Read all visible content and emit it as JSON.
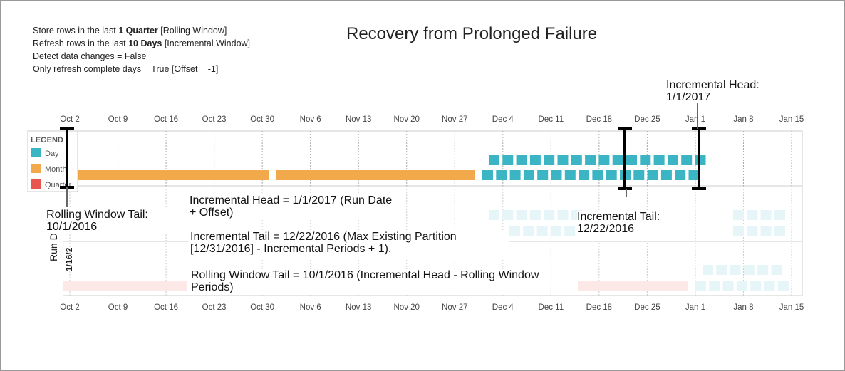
{
  "settings": [
    {
      "before": "Store rows in the last ",
      "bold": "1 Quarter",
      "after": " [Rolling Window]"
    },
    {
      "before": "Refresh rows in the last ",
      "bold": "10 Days",
      "after": " [Incremental Window]"
    },
    {
      "text": "Detect data changes = False"
    },
    {
      "text": "Only refresh complete days = True [Offset = -1]"
    }
  ],
  "title": "Recovery from Prolonged Failure",
  "axis_labels": [
    "Oct 2",
    "Oct 9",
    "Oct 16",
    "Oct 23",
    "Oct 30",
    "Nov 6",
    "Nov 13",
    "Nov 20",
    "Nov 27",
    "Dec 4",
    "Dec 11",
    "Dec 18",
    "Dec 25",
    "Jan 1",
    "Jan 8",
    "Jan 15"
  ],
  "legend": {
    "title": "LEGEND",
    "items": [
      "Day",
      "Month",
      "Quarter"
    ]
  },
  "y_axis_label": "Run Date",
  "y_tick": "1/16/2",
  "callouts": {
    "incremental_head": "Incremental Head: 1/1/2017",
    "rolling_window_tail": "Rolling Window Tail: 10/1/2016",
    "incremental_tail": "Incremental Tail: 12/22/2016"
  },
  "notes": [
    "Incremental Head = 1/1/2017 (Run Date + Offset)",
    "Incremental Tail = 12/22/2016 (Max Existing Partition [12/31/2016] - Incremental Periods + 1).",
    "Rolling Window Tail = 10/1/2016 (Incremental Head - Rolling Window Periods)"
  ]
}
